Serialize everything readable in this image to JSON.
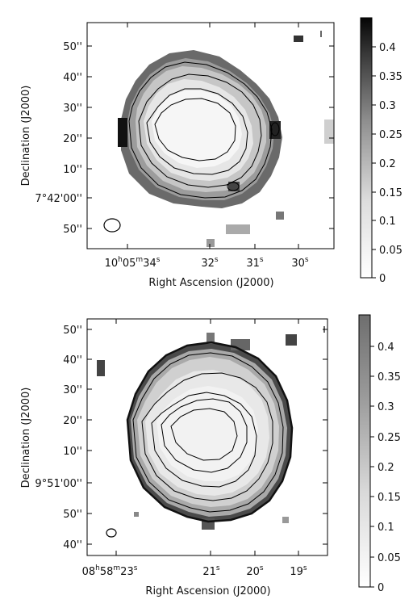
{
  "figure": {
    "panels": [
      {
        "ylabel": "Declination (J2000)",
        "xlabel": "Right Ascension (J2000)",
        "y_ticks": [
          "50''",
          "40''",
          "30''",
          "20''",
          "10''",
          "7°42'00''",
          "50''"
        ],
        "x_ticks": [
          {
            "main": "10",
            "sup1": "h",
            "mid": "05",
            "sup2": "m",
            "end": "34",
            "sup3": "s"
          },
          {
            "main": "32",
            "sup1": "s"
          },
          {
            "main": "31",
            "sup1": "s"
          },
          {
            "main": "30",
            "sup1": "s"
          }
        ],
        "colorbar_ticks": [
          "0.4",
          "0.35",
          "0.3",
          "0.25",
          "0.2",
          "0.15",
          "0.1",
          "0.05",
          "0"
        ],
        "colorbar_range": [
          0,
          0.45
        ]
      },
      {
        "ylabel": "Declination (J2000)",
        "xlabel": "Right Ascension (J2000)",
        "y_ticks": [
          "50''",
          "40''",
          "30''",
          "20''",
          "10''",
          "9°51'00''",
          "50''",
          "40''"
        ],
        "x_ticks": [
          {
            "main": "08",
            "sup1": "h",
            "mid": "58",
            "sup2": "m",
            "end": "23",
            "sup3": "s"
          },
          {
            "main": "21",
            "sup1": "s"
          },
          {
            "main": "20",
            "sup1": "s"
          },
          {
            "main": "19",
            "sup1": "s"
          }
        ],
        "colorbar_ticks": [
          "0.4",
          "0.35",
          "0.3",
          "0.25",
          "0.2",
          "0.15",
          "0.1",
          "0.05",
          "0"
        ],
        "colorbar_range": [
          0,
          0.45
        ]
      }
    ]
  },
  "colors": {
    "frame": "#000000",
    "background": "#ffffff"
  }
}
